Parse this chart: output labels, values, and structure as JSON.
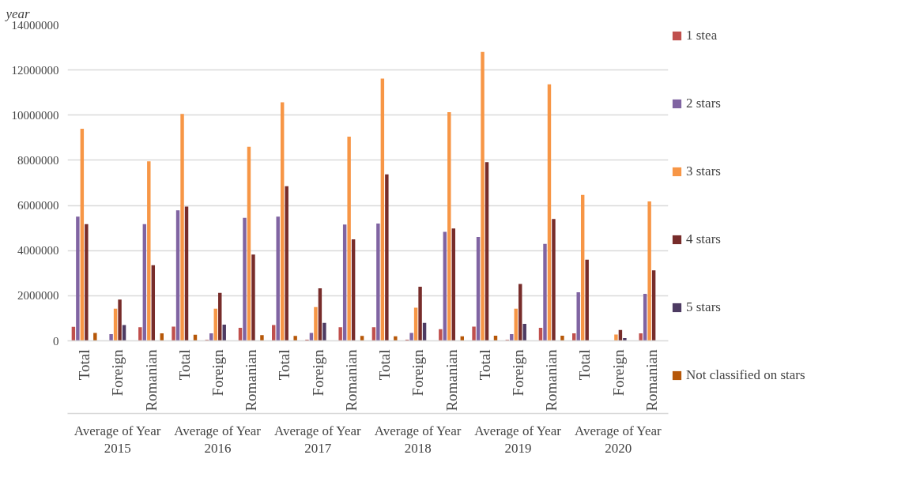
{
  "chart_data": {
    "type": "bar",
    "categories": [
      "Total",
      "Foreign",
      "Romanian",
      "Total",
      "Foreign",
      "Romanian",
      "Total",
      "Foreign",
      "Romanian",
      "Total",
      "Foreign",
      "Romanian",
      "Total",
      "Foreign",
      "Romanian",
      "Total",
      "Foreign",
      "Romanian"
    ],
    "series": [
      {
        "name": "1 stea",
        "color": "#c0504d",
        "values": [
          620000,
          null,
          600000,
          630000,
          40000,
          580000,
          700000,
          50000,
          600000,
          600000,
          50000,
          520000,
          630000,
          40000,
          580000,
          330000,
          null,
          330000
        ]
      },
      {
        "name": "2 stars",
        "color": "#8064a2",
        "values": [
          5500000,
          300000,
          5170000,
          5780000,
          330000,
          5450000,
          5500000,
          350000,
          5150000,
          5200000,
          350000,
          4830000,
          4600000,
          300000,
          4300000,
          2150000,
          null,
          2080000
        ]
      },
      {
        "name": "3 stars",
        "color": "#f79646",
        "values": [
          9400000,
          1430000,
          7950000,
          10050000,
          1430000,
          8600000,
          10570000,
          1500000,
          9050000,
          11620000,
          1470000,
          10130000,
          12800000,
          1430000,
          11370000,
          6470000,
          280000,
          6180000
        ]
      },
      {
        "name": "4 stars",
        "color": "#772c2a",
        "values": [
          5170000,
          1830000,
          3350000,
          5950000,
          2130000,
          3820000,
          6850000,
          2330000,
          4500000,
          7380000,
          2400000,
          4980000,
          7920000,
          2520000,
          5400000,
          3600000,
          480000,
          3120000
        ]
      },
      {
        "name": "5 stars",
        "color": "#4d3b62",
        "values": [
          null,
          700000,
          null,
          null,
          720000,
          null,
          null,
          800000,
          null,
          null,
          800000,
          null,
          null,
          750000,
          null,
          null,
          120000,
          null
        ]
      },
      {
        "name": "Not classified on stars",
        "color": "#b65708",
        "values": [
          350000,
          null,
          330000,
          270000,
          null,
          250000,
          220000,
          null,
          220000,
          200000,
          null,
          200000,
          230000,
          null,
          230000,
          null,
          null,
          null
        ]
      }
    ],
    "ylim": [
      0,
      14000000
    ],
    "yticks": [
      0,
      2000000,
      4000000,
      6000000,
      8000000,
      10000000,
      12000000,
      14000000
    ],
    "grid": "y",
    "legend": "right",
    "annotations": [
      "year",
      "Average of Year 2015",
      "Average of Year 2016",
      "Average of Year 2017",
      "Average of Year 2018",
      "Average of Year 2019",
      "Average of Year 2020"
    ]
  }
}
